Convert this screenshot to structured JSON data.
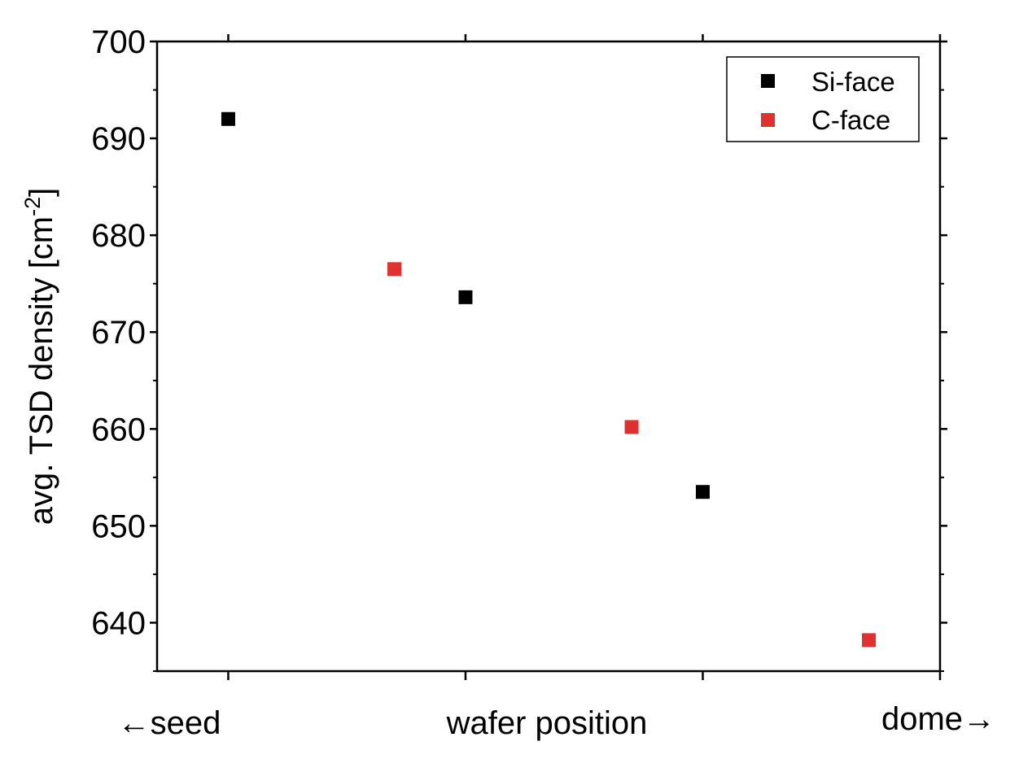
{
  "chart_data": {
    "type": "scatter",
    "title": "",
    "ylabel": "avg. TSD density [cm",
    "ylabel_superscript": "-2",
    "ylabel_suffix": "]",
    "xlabel": "wafer position",
    "x_left_label": "←seed",
    "x_right_label": "dome→",
    "xlim": [
      0.7,
      4.0
    ],
    "ylim": [
      635,
      700
    ],
    "yticks": [
      640,
      650,
      660,
      670,
      680,
      690,
      700
    ],
    "ytick_labels": [
      "640",
      "650",
      "660",
      "670",
      "680",
      "690",
      "700"
    ],
    "xticks": [
      1,
      2,
      3,
      4
    ],
    "legend_position": "top-right",
    "grid": false,
    "series": [
      {
        "name": "Si-face",
        "color": "#000000",
        "marker": "square",
        "points": [
          {
            "x": 1.0,
            "y": 692.0
          },
          {
            "x": 2.0,
            "y": 673.6
          },
          {
            "x": 3.0,
            "y": 653.5
          }
        ]
      },
      {
        "name": "C-face",
        "color": "#e03030",
        "marker": "square",
        "points": [
          {
            "x": 1.7,
            "y": 676.5
          },
          {
            "x": 2.7,
            "y": 660.2
          },
          {
            "x": 3.7,
            "y": 638.2
          }
        ]
      }
    ]
  }
}
